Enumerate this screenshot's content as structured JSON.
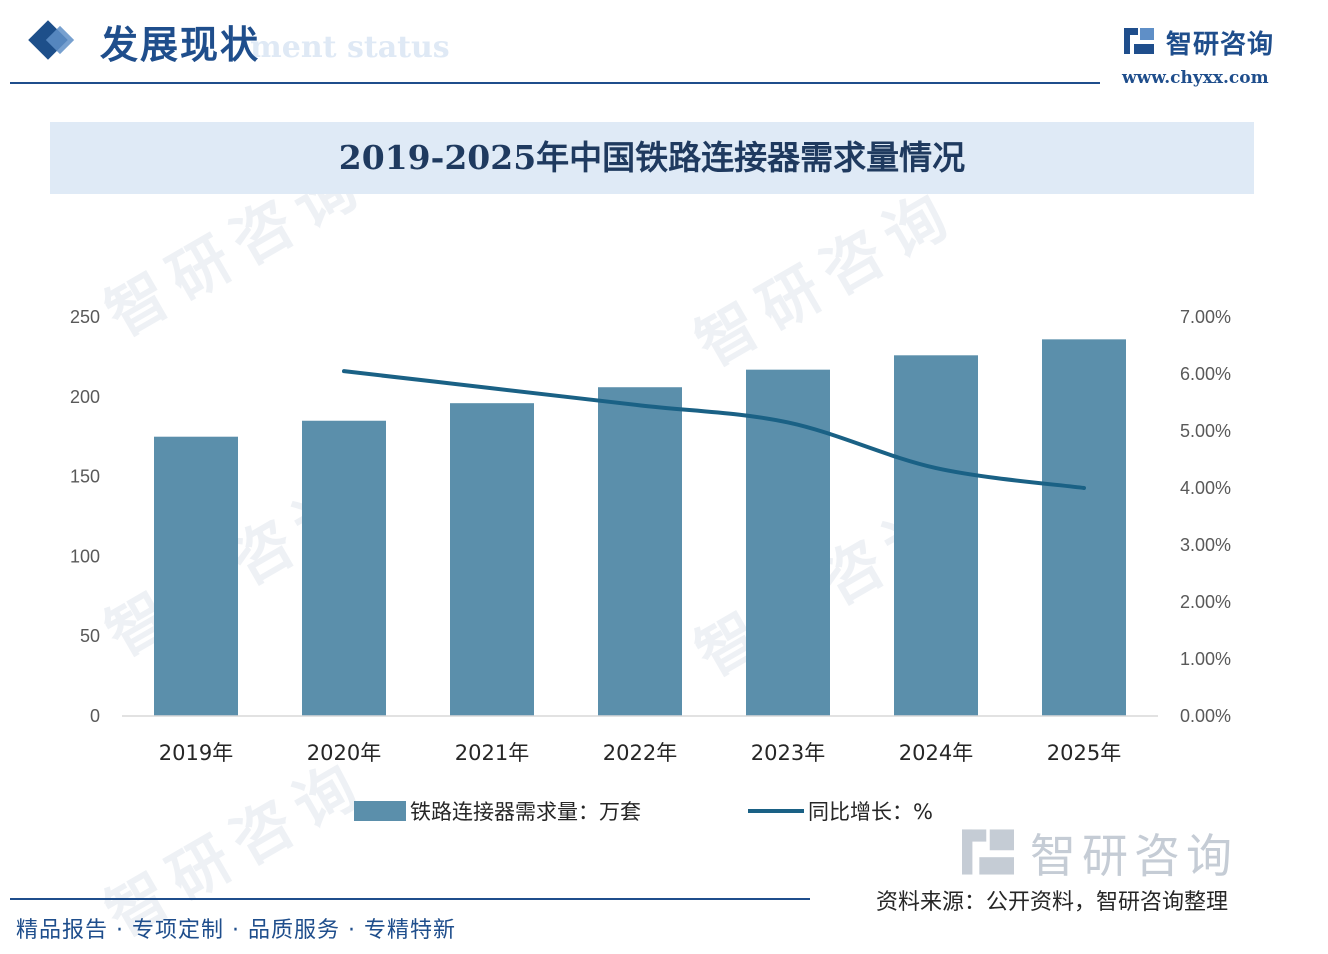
{
  "header": {
    "title": "发展现状",
    "subtitle": "ment status",
    "logo_name": "智研咨询",
    "logo_url": "www.chyxx.com"
  },
  "chart_title": "2019-2025年中国铁路连接器需求量情况",
  "watermark": "智研咨询",
  "source": "资料来源：公开资料，智研咨询整理",
  "footer": "精品报告 · 专项定制 · 品质服务 · 专精特新",
  "colors": {
    "bar": "#5b8fab",
    "line": "#1a6185",
    "brand": "#1f4e8c"
  },
  "chart_data": {
    "type": "bar",
    "categories": [
      "2019年",
      "2020年",
      "2021年",
      "2022年",
      "2023年",
      "2024年",
      "2025年"
    ],
    "series": [
      {
        "name": "铁路连接器需求量：万套",
        "type": "bar",
        "axis": "left",
        "values": [
          175,
          185,
          196,
          206,
          217,
          226,
          236
        ]
      },
      {
        "name": "同比增长：%",
        "type": "line",
        "axis": "right",
        "values": [
          null,
          6.05,
          5.75,
          5.45,
          5.15,
          4.35,
          4.0
        ]
      }
    ],
    "y_left": {
      "ylim": [
        0,
        250
      ],
      "ticks": [
        "0",
        "50",
        "100",
        "150",
        "200",
        "250"
      ]
    },
    "y_right": {
      "ylim": [
        0,
        7
      ],
      "ticks": [
        "0.00%",
        "1.00%",
        "2.00%",
        "3.00%",
        "4.00%",
        "5.00%",
        "6.00%",
        "7.00%"
      ]
    },
    "grid": false,
    "legend": "bottom"
  }
}
